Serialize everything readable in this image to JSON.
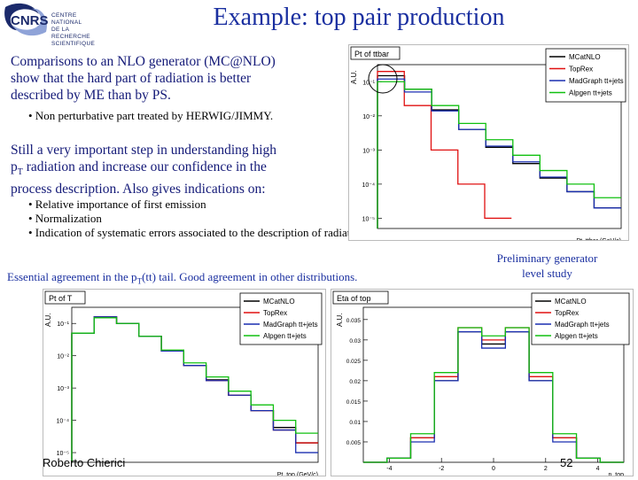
{
  "logo": {
    "mark": "CNRS",
    "lines": [
      "CENTRE NATIONAL",
      "DE LA RECHERCHE",
      "SCIENTIFIQUE"
    ]
  },
  "title": "Example: top pair production",
  "para1": [
    "Comparisons to an NLO generator (MC@NLO)",
    "show that the hard part of radiation is better",
    "described by ME than by PS."
  ],
  "bullet1": "• Non perturbative part treated by HERWIG/JIMMY.",
  "para2": [
    "Still a very important step in understanding high",
    "radiation and increase our confidence in the",
    "process description. Also gives indications on:"
  ],
  "para2_pt": {
    "p": "p",
    "sub": "T"
  },
  "bullets2": [
    "• Relative importance of first emission",
    "• Normalization",
    "• Indication of systematic errors associated to the description of radiation."
  ],
  "essential": {
    "pre": "Essential agreement in the p",
    "sub": "T",
    "post": "(tt) tail. Good agreement in other distributions."
  },
  "prelim": [
    "Preliminary generator",
    "level  study"
  ],
  "footer": {
    "author": "Roberto Chierici",
    "page": "52"
  },
  "legend": [
    "MCatNLO",
    "TopRex",
    "MadGraph tt+jets",
    "Alpgen tt+jets"
  ],
  "colors": {
    "MCatNLO": "#000000",
    "TopRex": "#e01010",
    "MadGraph tt+jets": "#1a2fb0",
    "Alpgen tt+jets": "#10c010"
  },
  "chart_data": [
    {
      "type": "line",
      "title": "Pt of ttbar",
      "ylabel": "A.U.",
      "xlabel": "Pt_ttbar (GeV/c)",
      "log_y": true,
      "ytick_labels": [
        "10⁻¹",
        "10⁻²",
        "10⁻³",
        "10⁻⁴",
        "10⁻⁵"
      ],
      "series": [
        {
          "name": "MCatNLO",
          "values": [
            0.15,
            0.06,
            0.015,
            0.004,
            0.0012,
            0.0004,
            0.00015,
            6e-05,
            2e-05
          ]
        },
        {
          "name": "TopRex",
          "values": [
            0.2,
            0.02,
            0.001,
            0.0001,
            1e-05
          ]
        },
        {
          "name": "MadGraph tt+jets",
          "values": [
            0.12,
            0.05,
            0.014,
            0.004,
            0.0013,
            0.00045,
            0.00016,
            6e-05,
            2e-05
          ]
        },
        {
          "name": "Alpgen tt+jets",
          "values": [
            0.1,
            0.06,
            0.02,
            0.006,
            0.002,
            0.0007,
            0.00025,
            0.0001,
            4e-05
          ]
        }
      ]
    },
    {
      "type": "line",
      "title": "Pt of T",
      "ylabel": "A.U.",
      "xlabel": "Pt_top (GeV/c)",
      "log_y": true,
      "ytick_labels": [
        "10⁻¹",
        "10⁻²",
        "10⁻³",
        "10⁻⁴",
        "10⁻⁵"
      ],
      "series": [
        {
          "name": "MCatNLO",
          "values": [
            0.05,
            0.16,
            0.1,
            0.04,
            0.014,
            0.005,
            0.0018,
            0.0006,
            0.0002,
            6e-05,
            2e-05
          ]
        },
        {
          "name": "TopRex",
          "values": [
            0.05,
            0.16,
            0.1,
            0.04,
            0.014,
            0.005,
            0.0017,
            0.0006,
            0.0002,
            5e-05,
            2e-05
          ]
        },
        {
          "name": "MadGraph tt+jets",
          "values": [
            0.05,
            0.16,
            0.1,
            0.04,
            0.014,
            0.005,
            0.0017,
            0.0006,
            0.0002,
            5e-05,
            1e-05
          ]
        },
        {
          "name": "Alpgen tt+jets",
          "values": [
            0.05,
            0.15,
            0.1,
            0.04,
            0.015,
            0.006,
            0.0022,
            0.0008,
            0.0003,
            0.0001,
            4e-05
          ]
        }
      ]
    },
    {
      "type": "line",
      "title": "Eta of top",
      "ylabel": "A.U.",
      "xlabel": "η_top",
      "x": [
        -5,
        -4,
        -3,
        -2,
        -1,
        0,
        1,
        2,
        3,
        4,
        5
      ],
      "yticks": [
        "0.035",
        "0.03",
        "0.025",
        "0.02",
        "0.015",
        "0.01",
        "0.005"
      ],
      "xticks": [
        "-4",
        "-2",
        "0",
        "2",
        "4"
      ],
      "series": [
        {
          "name": "MCatNLO",
          "values": [
            0.0,
            0.001,
            0.006,
            0.02,
            0.032,
            0.029,
            0.032,
            0.02,
            0.006,
            0.001,
            0.0
          ]
        },
        {
          "name": "TopRex",
          "values": [
            0.0,
            0.001,
            0.006,
            0.021,
            0.033,
            0.03,
            0.033,
            0.021,
            0.006,
            0.001,
            0.0
          ]
        },
        {
          "name": "MadGraph tt+jets",
          "values": [
            0.0,
            0.001,
            0.005,
            0.02,
            0.032,
            0.028,
            0.032,
            0.02,
            0.005,
            0.001,
            0.0
          ]
        },
        {
          "name": "Alpgen tt+jets",
          "values": [
            0.0,
            0.001,
            0.007,
            0.022,
            0.033,
            0.031,
            0.033,
            0.022,
            0.007,
            0.001,
            0.0
          ]
        }
      ]
    }
  ]
}
